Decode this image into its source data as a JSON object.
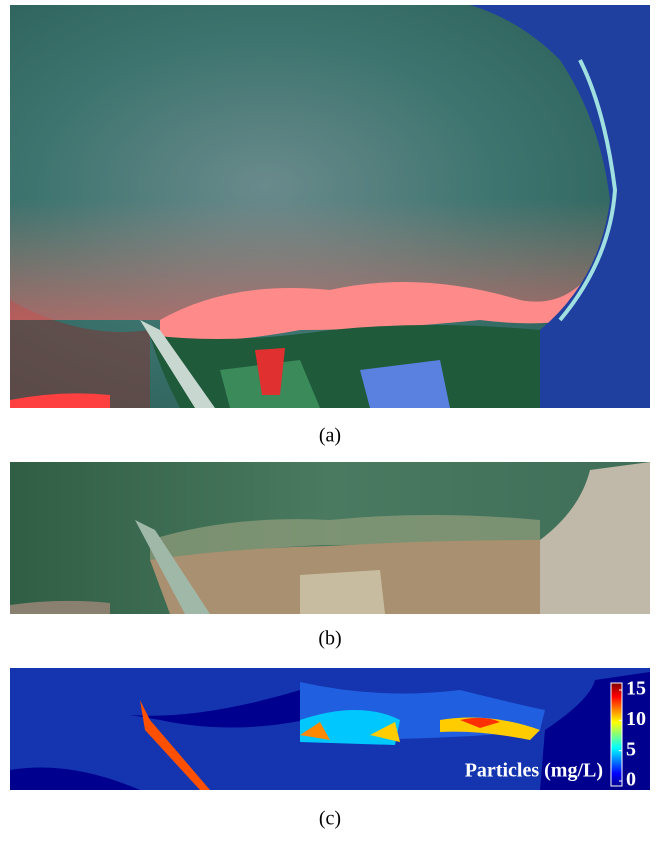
{
  "panels": [
    {
      "label": "(a)"
    },
    {
      "label": "(b)"
    },
    {
      "label": "(c)"
    }
  ],
  "colorbar": {
    "label": "Particles (mg/L)",
    "lim": [
      0,
      15
    ],
    "ticks": [
      0,
      5,
      10,
      15
    ]
  }
}
